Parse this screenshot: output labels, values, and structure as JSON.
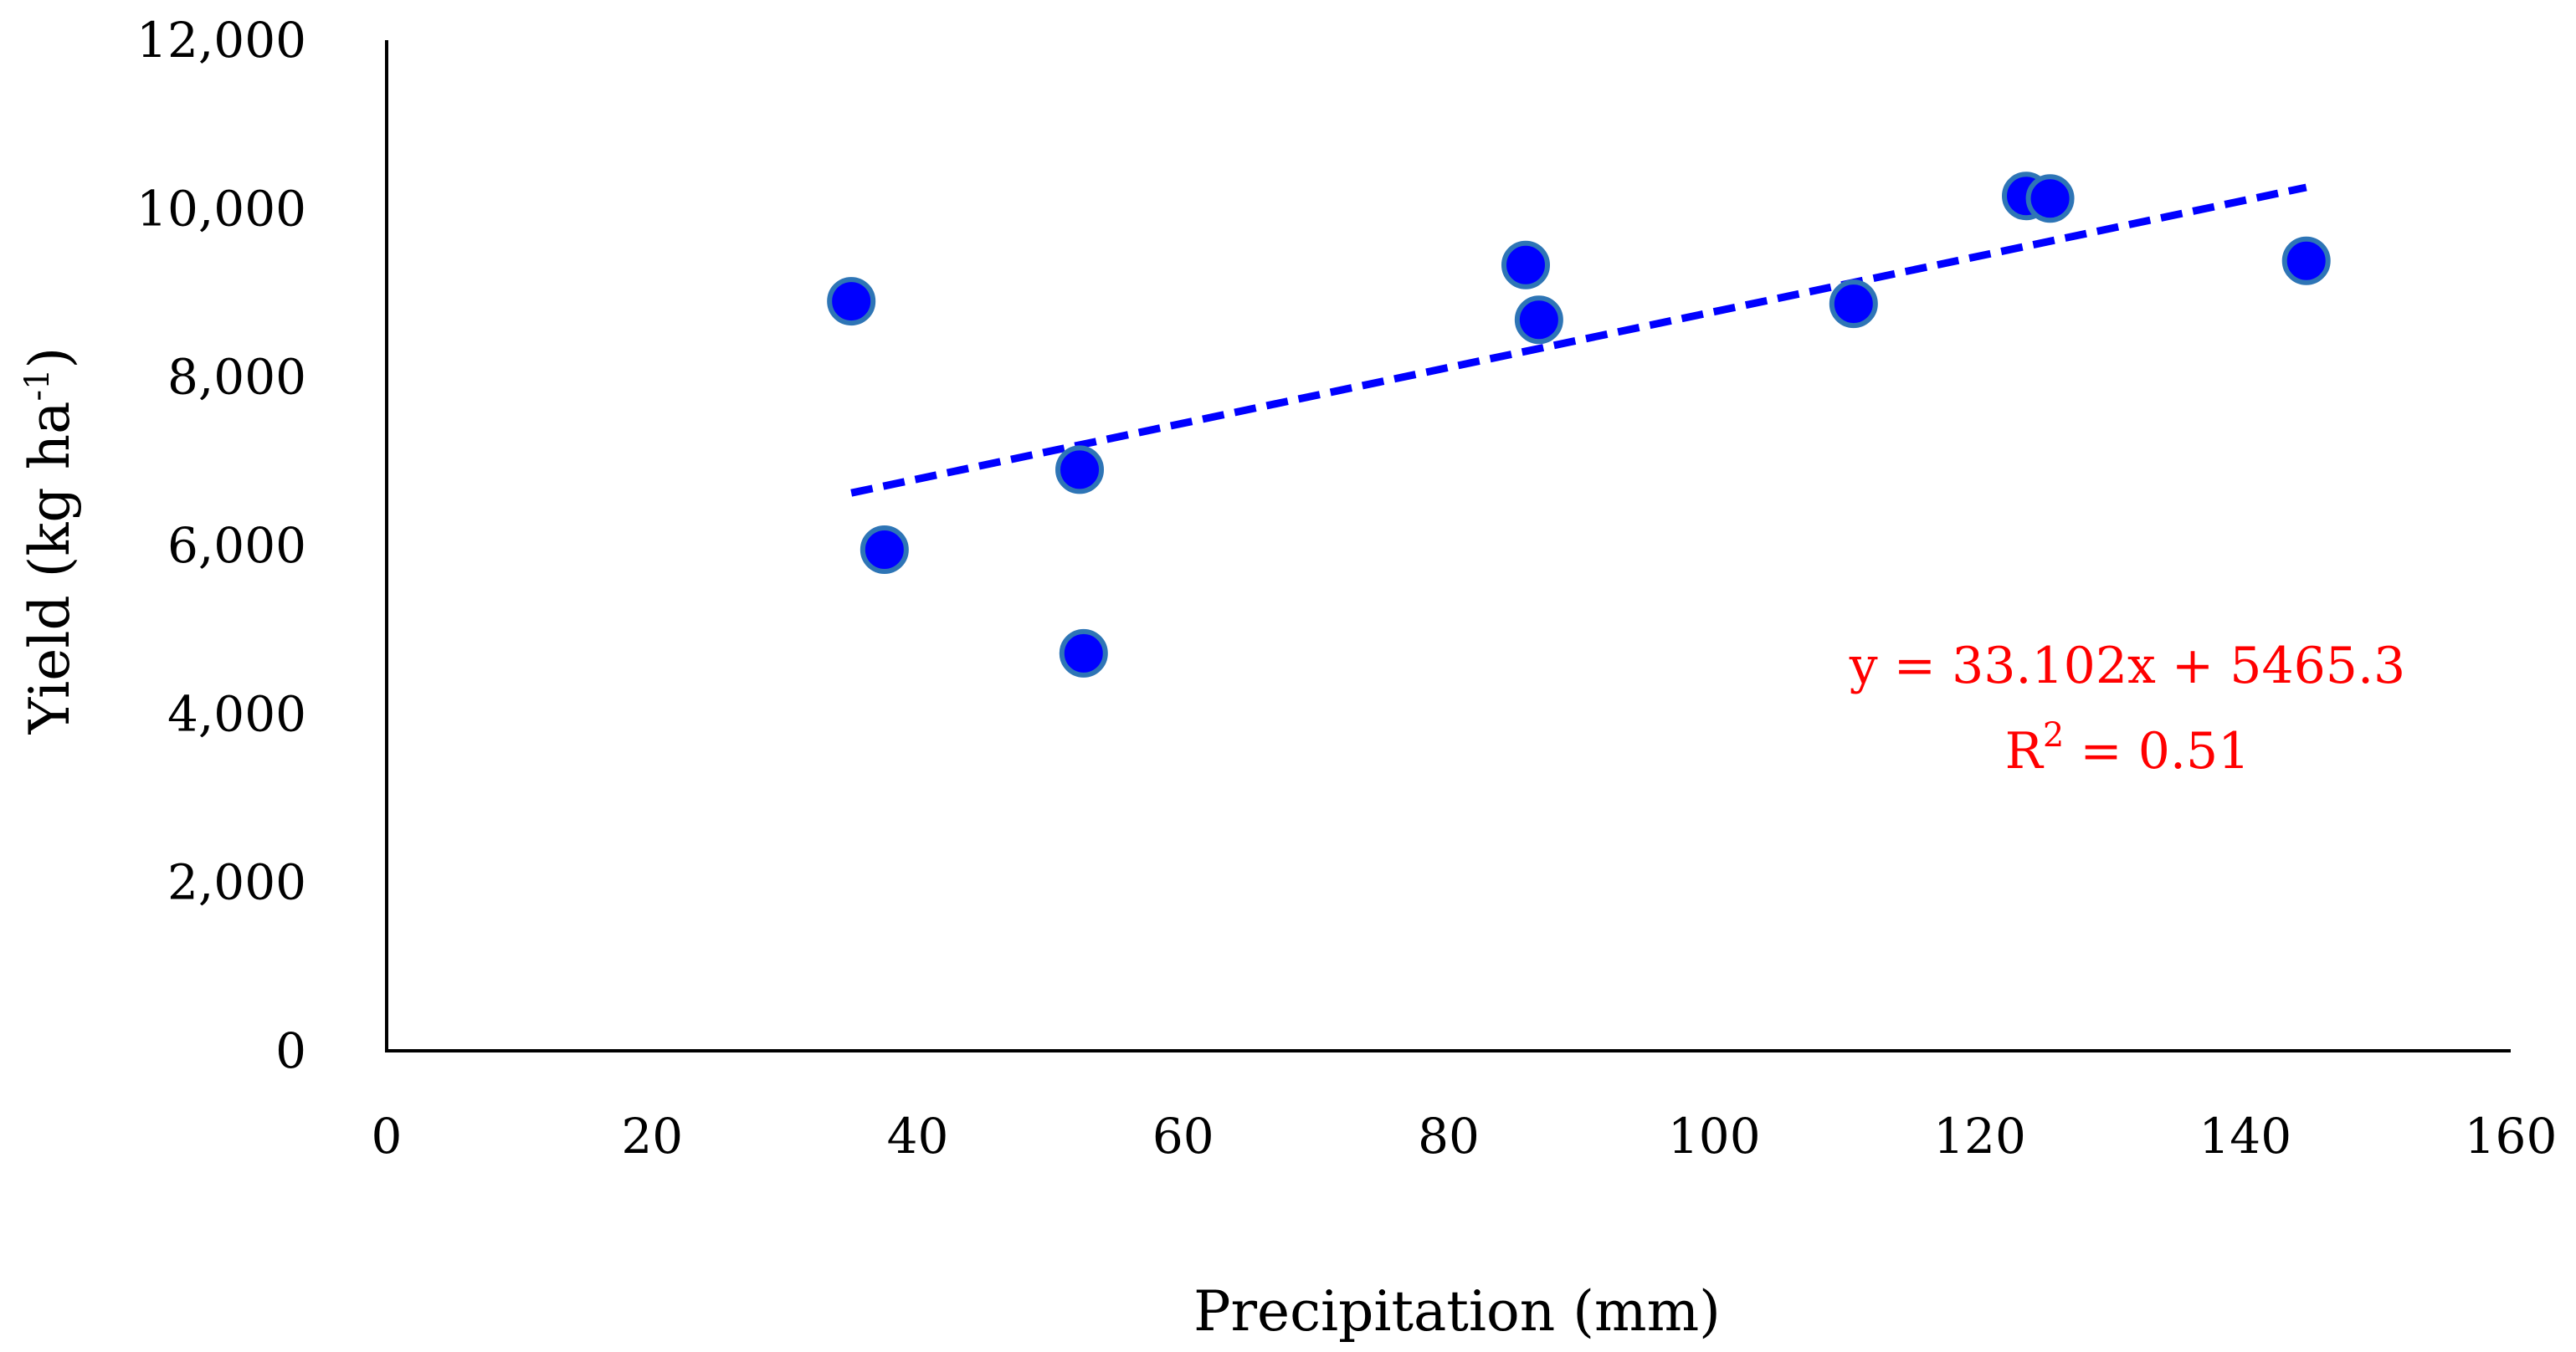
{
  "chart_data": {
    "type": "scatter",
    "title": "",
    "xlabel": "Precipitation (mm)",
    "ylabel_main": "Yield (kg ha",
    "ylabel_sup": "-1",
    "ylabel_close": ")",
    "xlim": [
      0,
      160
    ],
    "ylim": [
      0,
      12000
    ],
    "x_ticks": [
      0,
      20,
      40,
      60,
      80,
      100,
      120,
      140,
      160
    ],
    "x_tick_labels": [
      "0",
      "20",
      "40",
      "60",
      "80",
      "100",
      "120",
      "140",
      "160"
    ],
    "y_ticks": [
      0,
      2000,
      4000,
      6000,
      8000,
      10000,
      12000
    ],
    "y_tick_labels": [
      "0",
      "2,000",
      "4,000",
      "6,000",
      "8,000",
      "10,000",
      "12,000"
    ],
    "grid": false,
    "series": [
      {
        "name": "Yield",
        "points": [
          {
            "x": 35,
            "y": 8900
          },
          {
            "x": 37.5,
            "y": 5950
          },
          {
            "x": 52.2,
            "y": 6900
          },
          {
            "x": 52.5,
            "y": 4720
          },
          {
            "x": 85.8,
            "y": 9330
          },
          {
            "x": 86.8,
            "y": 8680
          },
          {
            "x": 110.5,
            "y": 8870
          },
          {
            "x": 123.5,
            "y": 10150
          },
          {
            "x": 125.3,
            "y": 10120
          },
          {
            "x": 144.6,
            "y": 9380
          }
        ]
      }
    ],
    "trendline": {
      "slope": 33.102,
      "intercept": 5465.3,
      "x_start": 35,
      "x_end": 144.6,
      "style": "dashed"
    },
    "equation_line1": "y = 33.102x + 5465.3",
    "equation_r2_base": "R",
    "equation_r2_sup": "2",
    "equation_r2_rest": " = 0.51",
    "colors": {
      "marker_fill": "#0000ff",
      "marker_stroke": "#2e75b6",
      "trendline": "#0000ff",
      "equation": "#ff0000",
      "axis": "#000000"
    }
  }
}
